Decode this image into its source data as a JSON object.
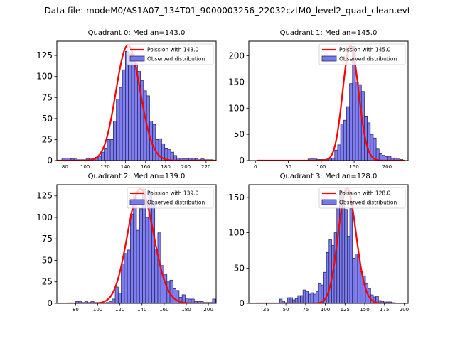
{
  "figure": {
    "suptitle": "Data file: modeM0/AS1A07_134T01_9000003256_22032cztM0_level2_quad_clean.evt",
    "colors": {
      "bar_fill": "#7777ee",
      "bar_edge": "#2a2a6a",
      "curve": "#ff0000",
      "axis": "#000000"
    }
  },
  "chart_data": [
    {
      "type": "bar",
      "title": "Quadrant 0: Median=143.0",
      "legend": [
        "Poission with 143.0",
        "Observed distribution"
      ],
      "legend_position": "top-right",
      "xlim": [
        72,
        230
      ],
      "ylim": [
        0,
        142
      ],
      "xticks": [
        80,
        100,
        120,
        140,
        160,
        180,
        200,
        220
      ],
      "yticks": [
        0,
        25,
        50,
        75,
        100,
        125
      ],
      "bin_start": 77,
      "bin_width": 3,
      "values": [
        3,
        3,
        3,
        2,
        3,
        1,
        1,
        1,
        2,
        3,
        2,
        4,
        5,
        10,
        14,
        25,
        25,
        47,
        73,
        87,
        108,
        130,
        128,
        120,
        116,
        106,
        95,
        83,
        77,
        47,
        43,
        25,
        26,
        20,
        14,
        13,
        10,
        6,
        3,
        3,
        2,
        2,
        3,
        3,
        2,
        1,
        2,
        1,
        1,
        1
      ],
      "poisson_mean": 143.0,
      "poisson_peak": 137
    },
    {
      "type": "bar",
      "title": "Quadrant 1: Median=145.0",
      "legend": [
        "Poission with 145.0",
        "Observed distribution"
      ],
      "legend_position": "top-right",
      "xlim": [
        -10,
        232
      ],
      "ylim": [
        0,
        228
      ],
      "xticks": [
        0,
        50,
        100,
        150,
        200
      ],
      "yticks": [
        0,
        50,
        100,
        150,
        200
      ],
      "bin_start": 80,
      "bin_width": 4.5,
      "values": [
        3,
        4,
        3,
        2,
        2,
        2,
        3,
        3,
        5,
        20,
        30,
        70,
        77,
        103,
        147,
        218,
        150,
        145,
        132,
        85,
        72,
        50,
        43,
        22,
        13,
        10,
        8,
        8,
        5,
        5,
        3,
        2
      ],
      "poisson_mean": 145.0,
      "poisson_peak": 219
    },
    {
      "type": "bar",
      "title": "Quadrant 2: Median=139.0",
      "legend": [
        "Poission with 139.0",
        "Observed distribution"
      ],
      "legend_position": "top-right",
      "xlim": [
        63,
        207
      ],
      "ylim": [
        0,
        138
      ],
      "xticks": [
        80,
        100,
        120,
        140,
        160,
        180,
        200
      ],
      "yticks": [
        0,
        25,
        50,
        75,
        100,
        125
      ],
      "bin_start": 80,
      "bin_width": 2.75,
      "values": [
        2,
        2,
        1,
        2,
        1,
        2,
        1,
        1,
        1,
        0,
        1,
        2,
        5,
        19,
        12,
        46,
        58,
        62,
        104,
        124,
        85,
        110,
        133,
        100,
        130,
        118,
        63,
        82,
        44,
        34,
        25,
        27,
        17,
        15,
        7,
        10,
        6,
        5,
        5,
        2,
        2,
        2,
        1,
        1,
        1,
        5
      ],
      "poisson_mean": 139.0,
      "poisson_peak": 133
    },
    {
      "type": "bar",
      "title": "Quadrant 3: Median=128.0",
      "legend": [
        "Poission with 128.0",
        "Observed distribution"
      ],
      "legend_position": "top-right",
      "xlim": [
        3,
        205
      ],
      "ylim": [
        0,
        168
      ],
      "xticks": [
        25,
        50,
        75,
        100,
        125,
        150,
        175,
        200
      ],
      "yticks": [
        0,
        50,
        100,
        150
      ],
      "bin_start": 42,
      "bin_width": 3.3,
      "values": [
        6,
        3,
        1,
        8,
        8,
        5,
        7,
        11,
        11,
        19,
        17,
        13,
        15,
        13,
        17,
        28,
        26,
        44,
        72,
        90,
        82,
        100,
        135,
        160,
        138,
        133,
        95,
        134,
        64,
        70,
        67,
        45,
        39,
        28,
        21,
        12,
        9,
        10,
        4,
        3,
        2,
        2,
        2,
        1
      ],
      "poisson_mean": 128.0,
      "poisson_peak": 163
    }
  ]
}
